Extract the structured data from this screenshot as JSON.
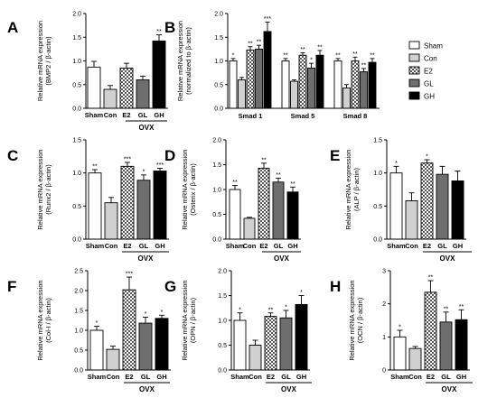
{
  "figure": {
    "group_label": "OVX",
    "colors": {
      "Sham": "#ffffff",
      "Con": "#d0d0d0",
      "E2": "#ffffff",
      "GL": "#6e6e6e",
      "GH": "#000000"
    },
    "patterns": {
      "E2": "checker"
    }
  },
  "chart_data": [
    {
      "id": "A",
      "panel_label": "A",
      "type": "bar",
      "ylabel": [
        "Relative mRNA expression",
        "(BMP2 / β-actin)"
      ],
      "ylim": [
        0,
        2.0
      ],
      "yticks": [
        0.0,
        0.5,
        1.0,
        1.5,
        2.0
      ],
      "categories": [
        "Sham",
        "Con",
        "E2",
        "GL",
        "GH"
      ],
      "values": [
        0.87,
        0.4,
        0.85,
        0.6,
        1.42
      ],
      "errors": [
        0.12,
        0.08,
        0.1,
        0.08,
        0.13
      ],
      "significance": [
        "",
        "",
        "",
        "",
        "**"
      ]
    },
    {
      "id": "B",
      "panel_label": "B",
      "type": "bar",
      "ylabel": [
        "Relative mRNA expression",
        "(normalized to β-actin)"
      ],
      "ylim": [
        0,
        2.0
      ],
      "yticks": [
        0.0,
        0.5,
        1.0,
        1.5,
        2.0
      ],
      "categories": [
        "Smad 1",
        "Smad 5",
        "Smad 8"
      ],
      "series": [
        {
          "name": "Sham",
          "values": [
            1.0,
            1.0,
            1.0
          ],
          "errors": [
            0.05,
            0.05,
            0.05
          ],
          "significance": [
            "*",
            "**",
            "**"
          ]
        },
        {
          "name": "Con",
          "values": [
            0.6,
            0.57,
            0.43
          ],
          "errors": [
            0.05,
            0.03,
            0.07
          ],
          "significance": [
            "",
            "",
            ""
          ]
        },
        {
          "name": "E2",
          "values": [
            1.23,
            1.12,
            1.0
          ],
          "errors": [
            0.07,
            0.05,
            0.08
          ],
          "significance": [
            "**",
            "**",
            "**"
          ]
        },
        {
          "name": "GL",
          "values": [
            1.25,
            0.85,
            0.77
          ],
          "errors": [
            0.08,
            0.1,
            0.07
          ],
          "significance": [
            "**",
            "*",
            "**"
          ]
        },
        {
          "name": "GH",
          "values": [
            1.62,
            1.12,
            0.97
          ],
          "errors": [
            0.2,
            0.1,
            0.08
          ],
          "significance": [
            "***",
            "**",
            "**"
          ]
        }
      ],
      "legend": {
        "placement": "right",
        "entries": [
          "Sham",
          "Con",
          "E2",
          "GL",
          "GH"
        ]
      }
    },
    {
      "id": "C",
      "panel_label": "C",
      "type": "bar",
      "ylabel": [
        "Relative mRNA expression",
        "(Runx2 / β-actin)"
      ],
      "ylim": [
        0,
        1.5
      ],
      "yticks": [
        0.0,
        0.5,
        1.0,
        1.5
      ],
      "categories": [
        "Sham",
        "Con",
        "E2",
        "GL",
        "GH"
      ],
      "values": [
        1.0,
        0.55,
        1.1,
        0.89,
        1.03
      ],
      "errors": [
        0.05,
        0.08,
        0.06,
        0.08,
        0.04
      ],
      "significance": [
        "**",
        "",
        "***",
        "*",
        "***"
      ]
    },
    {
      "id": "D",
      "panel_label": "D",
      "type": "bar",
      "ylabel": [
        "Relative mRNA expression",
        "(Osterix / β-actin)"
      ],
      "ylim": [
        0,
        2.0
      ],
      "yticks": [
        0.0,
        0.5,
        1.0,
        1.5,
        2.0
      ],
      "categories": [
        "Sham",
        "Con",
        "E2",
        "GL",
        "GH"
      ],
      "values": [
        1.0,
        0.42,
        1.43,
        1.15,
        0.95
      ],
      "errors": [
        0.08,
        0.02,
        0.1,
        0.08,
        0.1
      ],
      "significance": [
        "**",
        "",
        "**",
        "**",
        "**"
      ]
    },
    {
      "id": "E",
      "panel_label": "E",
      "type": "bar",
      "ylabel": [
        "Relative mRNA expression",
        "(ALP / β-actin)"
      ],
      "ylim": [
        0,
        1.5
      ],
      "yticks": [
        0.0,
        0.5,
        1.0,
        1.5
      ],
      "categories": [
        "Sham",
        "Con",
        "E2",
        "GL",
        "GH"
      ],
      "values": [
        1.0,
        0.58,
        1.15,
        0.98,
        0.88
      ],
      "errors": [
        0.1,
        0.12,
        0.05,
        0.12,
        0.15
      ],
      "significance": [
        "*",
        "",
        "*",
        "",
        ""
      ]
    },
    {
      "id": "F",
      "panel_label": "F",
      "type": "bar",
      "ylabel": [
        "Relative mRNA expression",
        "(Col-I / β-actin)"
      ],
      "ylim": [
        0,
        2.5
      ],
      "yticks": [
        0.0,
        0.5,
        1.0,
        1.5,
        2.0,
        2.5
      ],
      "categories": [
        "Sham",
        "Con",
        "E2",
        "GL",
        "GH"
      ],
      "values": [
        1.0,
        0.52,
        2.02,
        1.18,
        1.3
      ],
      "errors": [
        0.1,
        0.08,
        0.32,
        0.15,
        0.08
      ],
      "significance": [
        "*",
        "",
        "***",
        "*",
        "*"
      ]
    },
    {
      "id": "G",
      "panel_label": "G",
      "type": "bar",
      "ylabel": [
        "Relative mRNA expression",
        "(OPN / β-actin)"
      ],
      "ylim": [
        0,
        2.0
      ],
      "yticks": [
        0.0,
        0.5,
        1.0,
        1.5,
        2.0
      ],
      "categories": [
        "Sham",
        "Con",
        "E2",
        "GL",
        "GH"
      ],
      "values": [
        1.0,
        0.5,
        1.08,
        1.05,
        1.32
      ],
      "errors": [
        0.15,
        0.1,
        0.07,
        0.15,
        0.18
      ],
      "significance": [
        "*",
        "",
        "**",
        "*",
        "*"
      ]
    },
    {
      "id": "H",
      "panel_label": "H",
      "type": "bar",
      "ylabel": [
        "Relative mRNA expression",
        "(OCN / β-actin)"
      ],
      "ylim": [
        0,
        3
      ],
      "yticks": [
        0,
        1,
        2,
        3
      ],
      "categories": [
        "Sham",
        "Con",
        "E2",
        "GL",
        "GH"
      ],
      "values": [
        1.0,
        0.65,
        2.35,
        1.45,
        1.52
      ],
      "errors": [
        0.2,
        0.06,
        0.35,
        0.3,
        0.3
      ],
      "significance": [
        "*",
        "",
        "**",
        "**",
        "**"
      ]
    }
  ]
}
